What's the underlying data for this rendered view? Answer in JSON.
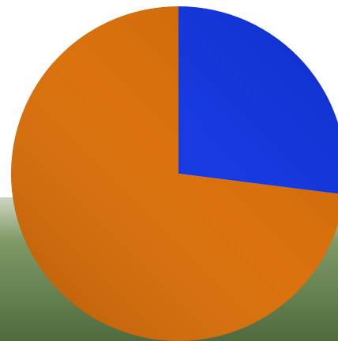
{
  "chart_data": {
    "type": "pie",
    "values": [
      27,
      73
    ],
    "colors": [
      "#0b30e0",
      "#d86a00"
    ],
    "start_angle": 0,
    "direction": "clockwise"
  }
}
